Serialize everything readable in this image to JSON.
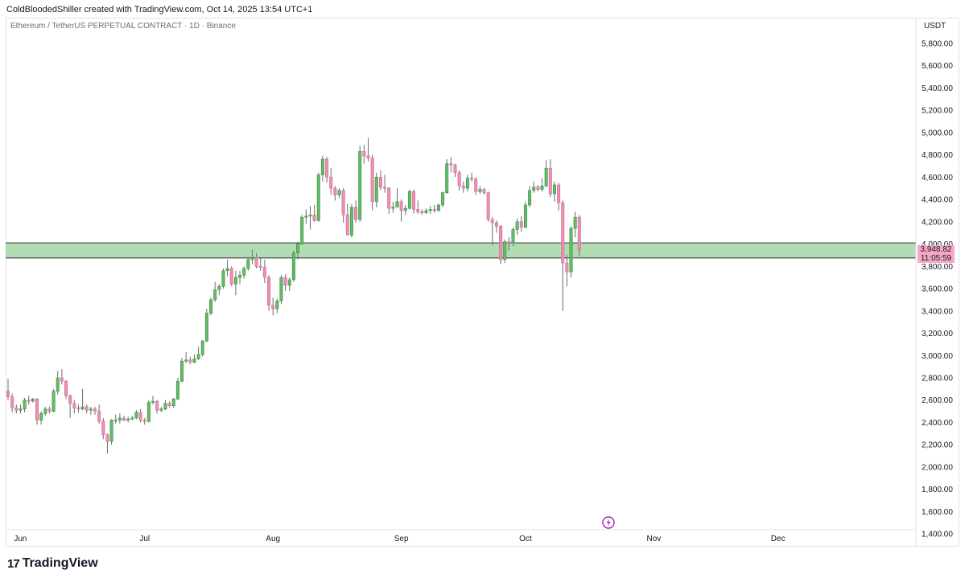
{
  "header": {
    "caption": "ColdBloodedShiller created with TradingView.com, Oct 14, 2025 13:54 UTC+1",
    "symbol_title": "Ethereum / TetherUS PERPETUAL CONTRACT · 1D · Binance",
    "currency": "USDT"
  },
  "price_tag": {
    "price": "3,948.82",
    "countdown": "11:05:59"
  },
  "footer": {
    "brand": "TradingView"
  },
  "colors": {
    "up": "#4caf50",
    "up_body": "#66bb6a",
    "down": "#ef8fb4",
    "wick": "#6b6b6b",
    "zone": "#a5d6a7",
    "zone_border": "#333333"
  },
  "chart_data": {
    "type": "candlestick",
    "y_axis": {
      "ticks": [
        1400,
        1600,
        1800,
        2000,
        2200,
        2400,
        2600,
        2800,
        3000,
        3200,
        3400,
        3600,
        3800,
        4000,
        4200,
        4400,
        4600,
        4800,
        5000,
        5200,
        5400,
        5600,
        5800
      ],
      "tick_labels": [
        "1,400.00",
        "1,600.00",
        "1,800.00",
        "2,000.00",
        "2,200.00",
        "2,400.00",
        "2,600.00",
        "2,800.00",
        "3,000.00",
        "3,200.00",
        "3,400.00",
        "3,600.00",
        "3,800.00",
        "4,000.00",
        "4,200.00",
        "4,400.00",
        "4,600.00",
        "4,800.00",
        "5,000.00",
        "5,200.00",
        "5,400.00",
        "5,600.00",
        "5,800.00"
      ],
      "range": [
        1380,
        5950
      ]
    },
    "x_axis": {
      "labels": [
        "Jun",
        "Jul",
        "Aug",
        "Sep",
        "Oct",
        "Nov",
        "Dec"
      ],
      "label_dates": [
        "2025-06-01",
        "2025-07-01",
        "2025-08-01",
        "2025-09-01",
        "2025-10-01",
        "2025-11-01",
        "2025-12-01"
      ],
      "range": [
        "2025-05-29",
        "2025-12-31"
      ]
    },
    "zone": {
      "low": 3875,
      "high": 4010
    },
    "last_price": 3948.82,
    "candles": [
      {
        "d": "2025-05-29",
        "o": 2680,
        "h": 2790,
        "l": 2600,
        "c": 2630
      },
      {
        "d": "2025-05-30",
        "o": 2630,
        "h": 2660,
        "l": 2490,
        "c": 2530
      },
      {
        "d": "2025-05-31",
        "o": 2530,
        "h": 2560,
        "l": 2480,
        "c": 2510
      },
      {
        "d": "2025-06-01",
        "o": 2510,
        "h": 2560,
        "l": 2480,
        "c": 2520
      },
      {
        "d": "2025-06-02",
        "o": 2520,
        "h": 2620,
        "l": 2490,
        "c": 2600
      },
      {
        "d": "2025-06-03",
        "o": 2600,
        "h": 2640,
        "l": 2560,
        "c": 2590
      },
      {
        "d": "2025-06-04",
        "o": 2590,
        "h": 2620,
        "l": 2580,
        "c": 2610
      },
      {
        "d": "2025-06-05",
        "o": 2610,
        "h": 2620,
        "l": 2380,
        "c": 2420
      },
      {
        "d": "2025-06-06",
        "o": 2420,
        "h": 2500,
        "l": 2380,
        "c": 2480
      },
      {
        "d": "2025-06-07",
        "o": 2480,
        "h": 2540,
        "l": 2460,
        "c": 2520
      },
      {
        "d": "2025-06-08",
        "o": 2520,
        "h": 2540,
        "l": 2480,
        "c": 2500
      },
      {
        "d": "2025-06-09",
        "o": 2500,
        "h": 2700,
        "l": 2490,
        "c": 2680
      },
      {
        "d": "2025-06-10",
        "o": 2680,
        "h": 2860,
        "l": 2650,
        "c": 2800
      },
      {
        "d": "2025-06-11",
        "o": 2800,
        "h": 2880,
        "l": 2740,
        "c": 2770
      },
      {
        "d": "2025-06-12",
        "o": 2770,
        "h": 2780,
        "l": 2610,
        "c": 2640
      },
      {
        "d": "2025-06-13",
        "o": 2640,
        "h": 2650,
        "l": 2440,
        "c": 2570
      },
      {
        "d": "2025-06-14",
        "o": 2570,
        "h": 2600,
        "l": 2480,
        "c": 2530
      },
      {
        "d": "2025-06-15",
        "o": 2530,
        "h": 2560,
        "l": 2490,
        "c": 2520
      },
      {
        "d": "2025-06-16",
        "o": 2520,
        "h": 2700,
        "l": 2510,
        "c": 2540
      },
      {
        "d": "2025-06-17",
        "o": 2540,
        "h": 2560,
        "l": 2480,
        "c": 2510
      },
      {
        "d": "2025-06-18",
        "o": 2510,
        "h": 2540,
        "l": 2470,
        "c": 2520
      },
      {
        "d": "2025-06-19",
        "o": 2520,
        "h": 2540,
        "l": 2470,
        "c": 2500
      },
      {
        "d": "2025-06-20",
        "o": 2500,
        "h": 2560,
        "l": 2390,
        "c": 2410
      },
      {
        "d": "2025-06-21",
        "o": 2410,
        "h": 2440,
        "l": 2250,
        "c": 2290
      },
      {
        "d": "2025-06-22",
        "o": 2290,
        "h": 2300,
        "l": 2120,
        "c": 2230
      },
      {
        "d": "2025-06-23",
        "o": 2230,
        "h": 2430,
        "l": 2200,
        "c": 2420
      },
      {
        "d": "2025-06-24",
        "o": 2420,
        "h": 2470,
        "l": 2390,
        "c": 2420
      },
      {
        "d": "2025-06-25",
        "o": 2420,
        "h": 2480,
        "l": 2390,
        "c": 2440
      },
      {
        "d": "2025-06-26",
        "o": 2440,
        "h": 2460,
        "l": 2410,
        "c": 2420
      },
      {
        "d": "2025-06-27",
        "o": 2420,
        "h": 2450,
        "l": 2400,
        "c": 2430
      },
      {
        "d": "2025-06-28",
        "o": 2430,
        "h": 2460,
        "l": 2420,
        "c": 2440
      },
      {
        "d": "2025-06-29",
        "o": 2440,
        "h": 2510,
        "l": 2430,
        "c": 2490
      },
      {
        "d": "2025-06-30",
        "o": 2490,
        "h": 2520,
        "l": 2400,
        "c": 2420
      },
      {
        "d": "2025-07-01",
        "o": 2420,
        "h": 2440,
        "l": 2380,
        "c": 2410
      },
      {
        "d": "2025-07-02",
        "o": 2410,
        "h": 2600,
        "l": 2400,
        "c": 2580
      },
      {
        "d": "2025-07-03",
        "o": 2580,
        "h": 2640,
        "l": 2560,
        "c": 2590
      },
      {
        "d": "2025-07-04",
        "o": 2590,
        "h": 2600,
        "l": 2480,
        "c": 2510
      },
      {
        "d": "2025-07-05",
        "o": 2510,
        "h": 2540,
        "l": 2490,
        "c": 2520
      },
      {
        "d": "2025-07-06",
        "o": 2520,
        "h": 2600,
        "l": 2510,
        "c": 2570
      },
      {
        "d": "2025-07-07",
        "o": 2570,
        "h": 2590,
        "l": 2530,
        "c": 2550
      },
      {
        "d": "2025-07-08",
        "o": 2550,
        "h": 2620,
        "l": 2530,
        "c": 2610
      },
      {
        "d": "2025-07-09",
        "o": 2610,
        "h": 2800,
        "l": 2600,
        "c": 2770
      },
      {
        "d": "2025-07-10",
        "o": 2770,
        "h": 2980,
        "l": 2760,
        "c": 2950
      },
      {
        "d": "2025-07-11",
        "o": 2950,
        "h": 3030,
        "l": 2930,
        "c": 2960
      },
      {
        "d": "2025-07-12",
        "o": 2960,
        "h": 2990,
        "l": 2920,
        "c": 2940
      },
      {
        "d": "2025-07-13",
        "o": 2940,
        "h": 3010,
        "l": 2930,
        "c": 2970
      },
      {
        "d": "2025-07-14",
        "o": 2970,
        "h": 3080,
        "l": 2960,
        "c": 3010
      },
      {
        "d": "2025-07-15",
        "o": 3010,
        "h": 3140,
        "l": 2990,
        "c": 3130
      },
      {
        "d": "2025-07-16",
        "o": 3130,
        "h": 3420,
        "l": 3120,
        "c": 3380
      },
      {
        "d": "2025-07-17",
        "o": 3380,
        "h": 3520,
        "l": 3360,
        "c": 3500
      },
      {
        "d": "2025-07-18",
        "o": 3500,
        "h": 3660,
        "l": 3480,
        "c": 3590
      },
      {
        "d": "2025-07-19",
        "o": 3590,
        "h": 3640,
        "l": 3540,
        "c": 3620
      },
      {
        "d": "2025-07-20",
        "o": 3620,
        "h": 3780,
        "l": 3600,
        "c": 3760
      },
      {
        "d": "2025-07-21",
        "o": 3760,
        "h": 3860,
        "l": 3710,
        "c": 3780
      },
      {
        "d": "2025-07-22",
        "o": 3780,
        "h": 3800,
        "l": 3620,
        "c": 3640
      },
      {
        "d": "2025-07-23",
        "o": 3640,
        "h": 3760,
        "l": 3540,
        "c": 3700
      },
      {
        "d": "2025-07-24",
        "o": 3700,
        "h": 3760,
        "l": 3640,
        "c": 3720
      },
      {
        "d": "2025-07-25",
        "o": 3720,
        "h": 3800,
        "l": 3690,
        "c": 3780
      },
      {
        "d": "2025-07-26",
        "o": 3780,
        "h": 3880,
        "l": 3760,
        "c": 3860
      },
      {
        "d": "2025-07-27",
        "o": 3860,
        "h": 3950,
        "l": 3820,
        "c": 3880
      },
      {
        "d": "2025-07-28",
        "o": 3880,
        "h": 3920,
        "l": 3780,
        "c": 3800
      },
      {
        "d": "2025-07-29",
        "o": 3800,
        "h": 3880,
        "l": 3760,
        "c": 3790
      },
      {
        "d": "2025-07-30",
        "o": 3790,
        "h": 3860,
        "l": 3650,
        "c": 3700
      },
      {
        "d": "2025-07-31",
        "o": 3700,
        "h": 3720,
        "l": 3400,
        "c": 3450
      },
      {
        "d": "2025-08-01",
        "o": 3450,
        "h": 3520,
        "l": 3360,
        "c": 3420
      },
      {
        "d": "2025-08-02",
        "o": 3420,
        "h": 3510,
        "l": 3380,
        "c": 3490
      },
      {
        "d": "2025-08-03",
        "o": 3490,
        "h": 3720,
        "l": 3460,
        "c": 3700
      },
      {
        "d": "2025-08-04",
        "o": 3700,
        "h": 3730,
        "l": 3580,
        "c": 3630
      },
      {
        "d": "2025-08-05",
        "o": 3630,
        "h": 3700,
        "l": 3580,
        "c": 3680
      },
      {
        "d": "2025-08-06",
        "o": 3680,
        "h": 3940,
        "l": 3660,
        "c": 3920
      },
      {
        "d": "2025-08-07",
        "o": 3920,
        "h": 4020,
        "l": 3860,
        "c": 4000
      },
      {
        "d": "2025-08-08",
        "o": 4000,
        "h": 4260,
        "l": 3990,
        "c": 4240
      },
      {
        "d": "2025-08-09",
        "o": 4240,
        "h": 4310,
        "l": 4180,
        "c": 4250
      },
      {
        "d": "2025-08-10",
        "o": 4250,
        "h": 4340,
        "l": 4130,
        "c": 4260
      },
      {
        "d": "2025-08-11",
        "o": 4260,
        "h": 4350,
        "l": 4200,
        "c": 4210
      },
      {
        "d": "2025-08-12",
        "o": 4210,
        "h": 4640,
        "l": 4200,
        "c": 4620
      },
      {
        "d": "2025-08-13",
        "o": 4620,
        "h": 4790,
        "l": 4560,
        "c": 4760
      },
      {
        "d": "2025-08-14",
        "o": 4760,
        "h": 4780,
        "l": 4550,
        "c": 4600
      },
      {
        "d": "2025-08-15",
        "o": 4600,
        "h": 4680,
        "l": 4440,
        "c": 4500
      },
      {
        "d": "2025-08-16",
        "o": 4500,
        "h": 4520,
        "l": 4390,
        "c": 4440
      },
      {
        "d": "2025-08-17",
        "o": 4440,
        "h": 4500,
        "l": 4410,
        "c": 4480
      },
      {
        "d": "2025-08-18",
        "o": 4480,
        "h": 4500,
        "l": 4190,
        "c": 4260
      },
      {
        "d": "2025-08-19",
        "o": 4260,
        "h": 4360,
        "l": 4080,
        "c": 4080
      },
      {
        "d": "2025-08-20",
        "o": 4080,
        "h": 4360,
        "l": 4060,
        "c": 4330
      },
      {
        "d": "2025-08-21",
        "o": 4330,
        "h": 4390,
        "l": 4190,
        "c": 4220
      },
      {
        "d": "2025-08-22",
        "o": 4220,
        "h": 4880,
        "l": 4200,
        "c": 4830
      },
      {
        "d": "2025-08-23",
        "o": 4830,
        "h": 4890,
        "l": 4720,
        "c": 4790
      },
      {
        "d": "2025-08-24",
        "o": 4790,
        "h": 4950,
        "l": 4740,
        "c": 4770
      },
      {
        "d": "2025-08-25",
        "o": 4770,
        "h": 4800,
        "l": 4300,
        "c": 4380
      },
      {
        "d": "2025-08-26",
        "o": 4380,
        "h": 4640,
        "l": 4330,
        "c": 4600
      },
      {
        "d": "2025-08-27",
        "o": 4600,
        "h": 4660,
        "l": 4480,
        "c": 4510
      },
      {
        "d": "2025-08-28",
        "o": 4510,
        "h": 4620,
        "l": 4460,
        "c": 4500
      },
      {
        "d": "2025-08-29",
        "o": 4500,
        "h": 4510,
        "l": 4270,
        "c": 4320
      },
      {
        "d": "2025-08-30",
        "o": 4320,
        "h": 4380,
        "l": 4280,
        "c": 4330
      },
      {
        "d": "2025-08-31",
        "o": 4330,
        "h": 4500,
        "l": 4330,
        "c": 4380
      },
      {
        "d": "2025-09-01",
        "o": 4380,
        "h": 4400,
        "l": 4200,
        "c": 4300
      },
      {
        "d": "2025-09-02",
        "o": 4300,
        "h": 4350,
        "l": 4260,
        "c": 4320
      },
      {
        "d": "2025-09-03",
        "o": 4320,
        "h": 4490,
        "l": 4310,
        "c": 4470
      },
      {
        "d": "2025-09-04",
        "o": 4470,
        "h": 4490,
        "l": 4270,
        "c": 4310
      },
      {
        "d": "2025-09-05",
        "o": 4310,
        "h": 4390,
        "l": 4270,
        "c": 4290
      },
      {
        "d": "2025-09-06",
        "o": 4290,
        "h": 4310,
        "l": 4260,
        "c": 4280
      },
      {
        "d": "2025-09-07",
        "o": 4280,
        "h": 4320,
        "l": 4270,
        "c": 4300
      },
      {
        "d": "2025-09-08",
        "o": 4300,
        "h": 4340,
        "l": 4270,
        "c": 4310
      },
      {
        "d": "2025-09-09",
        "o": 4310,
        "h": 4350,
        "l": 4280,
        "c": 4300
      },
      {
        "d": "2025-09-10",
        "o": 4300,
        "h": 4360,
        "l": 4290,
        "c": 4350
      },
      {
        "d": "2025-09-11",
        "o": 4350,
        "h": 4470,
        "l": 4330,
        "c": 4460
      },
      {
        "d": "2025-09-12",
        "o": 4460,
        "h": 4760,
        "l": 4450,
        "c": 4720
      },
      {
        "d": "2025-09-13",
        "o": 4720,
        "h": 4780,
        "l": 4640,
        "c": 4710
      },
      {
        "d": "2025-09-14",
        "o": 4710,
        "h": 4720,
        "l": 4600,
        "c": 4640
      },
      {
        "d": "2025-09-15",
        "o": 4640,
        "h": 4660,
        "l": 4480,
        "c": 4520
      },
      {
        "d": "2025-09-16",
        "o": 4520,
        "h": 4560,
        "l": 4460,
        "c": 4500
      },
      {
        "d": "2025-09-17",
        "o": 4500,
        "h": 4620,
        "l": 4470,
        "c": 4590
      },
      {
        "d": "2025-09-18",
        "o": 4590,
        "h": 4640,
        "l": 4560,
        "c": 4580
      },
      {
        "d": "2025-09-19",
        "o": 4580,
        "h": 4600,
        "l": 4440,
        "c": 4470
      },
      {
        "d": "2025-09-20",
        "o": 4470,
        "h": 4520,
        "l": 4450,
        "c": 4490
      },
      {
        "d": "2025-09-21",
        "o": 4490,
        "h": 4500,
        "l": 4440,
        "c": 4460
      },
      {
        "d": "2025-09-22",
        "o": 4460,
        "h": 4470,
        "l": 4200,
        "c": 4220
      },
      {
        "d": "2025-09-23",
        "o": 4220,
        "h": 4240,
        "l": 3990,
        "c": 4190
      },
      {
        "d": "2025-09-24",
        "o": 4190,
        "h": 4210,
        "l": 4100,
        "c": 4160
      },
      {
        "d": "2025-09-25",
        "o": 4160,
        "h": 4170,
        "l": 3820,
        "c": 3860
      },
      {
        "d": "2025-09-26",
        "o": 3860,
        "h": 4040,
        "l": 3830,
        "c": 4020
      },
      {
        "d": "2025-09-27",
        "o": 4020,
        "h": 4060,
        "l": 3940,
        "c": 4010
      },
      {
        "d": "2025-09-28",
        "o": 4010,
        "h": 4150,
        "l": 3980,
        "c": 4130
      },
      {
        "d": "2025-09-29",
        "o": 4130,
        "h": 4230,
        "l": 4080,
        "c": 4200
      },
      {
        "d": "2025-09-30",
        "o": 4200,
        "h": 4250,
        "l": 4110,
        "c": 4150
      },
      {
        "d": "2025-10-01",
        "o": 4150,
        "h": 4380,
        "l": 4140,
        "c": 4350
      },
      {
        "d": "2025-10-02",
        "o": 4350,
        "h": 4520,
        "l": 4330,
        "c": 4480
      },
      {
        "d": "2025-10-03",
        "o": 4480,
        "h": 4560,
        "l": 4460,
        "c": 4510
      },
      {
        "d": "2025-10-04",
        "o": 4510,
        "h": 4530,
        "l": 4470,
        "c": 4490
      },
      {
        "d": "2025-10-05",
        "o": 4490,
        "h": 4590,
        "l": 4470,
        "c": 4520
      },
      {
        "d": "2025-10-06",
        "o": 4520,
        "h": 4750,
        "l": 4510,
        "c": 4680
      },
      {
        "d": "2025-10-07",
        "o": 4680,
        "h": 4760,
        "l": 4420,
        "c": 4450
      },
      {
        "d": "2025-10-08",
        "o": 4450,
        "h": 4560,
        "l": 4380,
        "c": 4530
      },
      {
        "d": "2025-10-09",
        "o": 4530,
        "h": 4550,
        "l": 4300,
        "c": 4370
      },
      {
        "d": "2025-10-10",
        "o": 4370,
        "h": 4390,
        "l": 3400,
        "c": 3830
      },
      {
        "d": "2025-10-11",
        "o": 3830,
        "h": 3900,
        "l": 3620,
        "c": 3750
      },
      {
        "d": "2025-10-12",
        "o": 3750,
        "h": 4160,
        "l": 3700,
        "c": 4140
      },
      {
        "d": "2025-10-13",
        "o": 4140,
        "h": 4290,
        "l": 4060,
        "c": 4240
      },
      {
        "d": "2025-10-14",
        "o": 4240,
        "h": 4260,
        "l": 3890,
        "c": 3948.82
      }
    ]
  }
}
